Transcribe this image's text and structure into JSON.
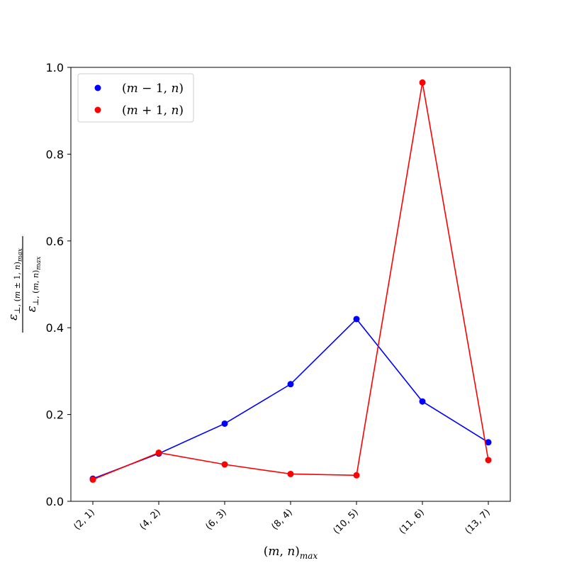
{
  "chart_data": {
    "type": "line",
    "categories": [
      "(2, 1)",
      "(4, 2)",
      "(6, 3)",
      "(8, 4)",
      "(10, 5)",
      "(11, 6)",
      "(13, 7)"
    ],
    "series": [
      {
        "name": "(m − 1, n)",
        "color": "#0000ff",
        "values": [
          0.052,
          0.11,
          0.179,
          0.27,
          0.42,
          0.23,
          0.136
        ]
      },
      {
        "name": "(m + 1, n)",
        "color": "#ff0000",
        "values": [
          0.05,
          0.112,
          0.085,
          0.063,
          0.06,
          0.965,
          0.095
        ]
      }
    ],
    "ylim": [
      0,
      1
    ],
    "yticks": [
      "0.0",
      "0.2",
      "0.4",
      "0.6",
      "0.8",
      "1.0"
    ],
    "xlabel": "(m, n)max",
    "ylabel": "ε⊥,(m±1,n)max / ε⊥,(m,n)max",
    "grid": false,
    "legend_position": "upper-left"
  }
}
